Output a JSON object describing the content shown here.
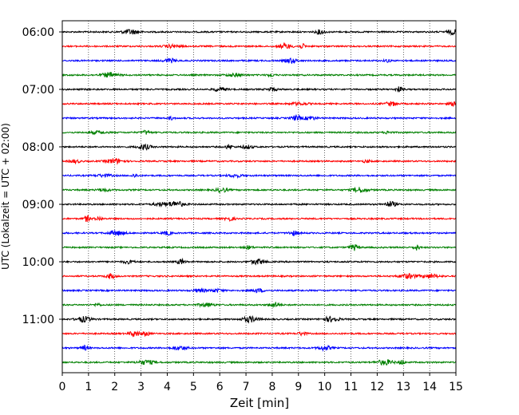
{
  "chart_data": {
    "type": "line",
    "title": "",
    "xlabel": "Zeit  [min]",
    "ylabel": "UTC (Lokalzeit = UTC + 02:00)",
    "xlim": [
      0,
      15
    ],
    "x_ticks": [
      "0",
      "1",
      "2",
      "3",
      "4",
      "5",
      "6",
      "7",
      "8",
      "9",
      "10",
      "11",
      "12",
      "13",
      "14",
      "15"
    ],
    "y_tick_labels": [
      "06:00",
      "07:00",
      "08:00",
      "09:00",
      "10:00",
      "11:00"
    ],
    "grid": "vertical dotted",
    "legend": "none",
    "traces_per_hour": 4,
    "minutes_per_trace": 15,
    "series": [
      {
        "start": "06:00",
        "color": "#000000"
      },
      {
        "start": "06:15",
        "color": "#ff0000"
      },
      {
        "start": "06:30",
        "color": "#0000ff"
      },
      {
        "start": "06:45",
        "color": "#008000"
      },
      {
        "start": "07:00",
        "color": "#000000"
      },
      {
        "start": "07:15",
        "color": "#ff0000"
      },
      {
        "start": "07:30",
        "color": "#0000ff"
      },
      {
        "start": "07:45",
        "color": "#008000"
      },
      {
        "start": "08:00",
        "color": "#000000"
      },
      {
        "start": "08:15",
        "color": "#ff0000"
      },
      {
        "start": "08:30",
        "color": "#0000ff"
      },
      {
        "start": "08:45",
        "color": "#008000"
      },
      {
        "start": "09:00",
        "color": "#000000"
      },
      {
        "start": "09:15",
        "color": "#ff0000"
      },
      {
        "start": "09:30",
        "color": "#0000ff"
      },
      {
        "start": "09:45",
        "color": "#008000"
      },
      {
        "start": "10:00",
        "color": "#000000"
      },
      {
        "start": "10:15",
        "color": "#ff0000"
      },
      {
        "start": "10:30",
        "color": "#0000ff"
      },
      {
        "start": "10:45",
        "color": "#008000"
      },
      {
        "start": "11:00",
        "color": "#000000"
      },
      {
        "start": "11:15",
        "color": "#ff0000"
      },
      {
        "start": "11:30",
        "color": "#0000ff"
      },
      {
        "start": "11:45",
        "color": "#008000"
      }
    ]
  }
}
